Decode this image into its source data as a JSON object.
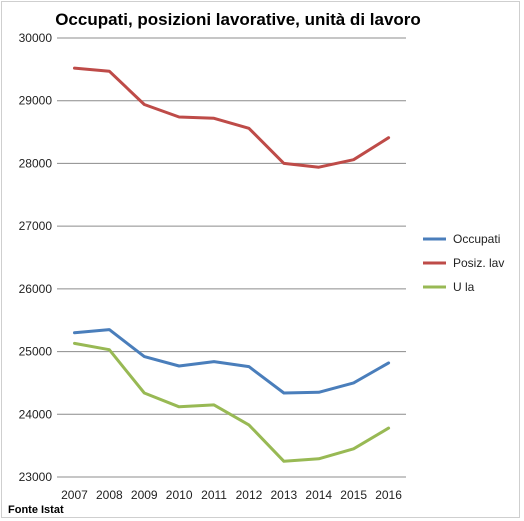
{
  "chart_data": {
    "type": "line",
    "title": "Occupati, posizioni lavorative, unità di lavoro",
    "xlabel": "",
    "ylabel": "",
    "categories": [
      "2007",
      "2008",
      "2009",
      "2010",
      "2011",
      "2012",
      "2013",
      "2014",
      "2015",
      "2016"
    ],
    "ylim": [
      23000,
      30000
    ],
    "yticks": [
      23000,
      24000,
      25000,
      26000,
      27000,
      28000,
      29000,
      30000
    ],
    "grid": true,
    "legend_position": "right",
    "series": [
      {
        "name": "Occupati",
        "color": "#4a7ebb",
        "values": [
          25300,
          25350,
          24920,
          24770,
          24840,
          24760,
          24340,
          24350,
          24500,
          24820
        ]
      },
      {
        "name": "Posiz. lav",
        "color": "#be4b48",
        "values": [
          29520,
          29470,
          28940,
          28740,
          28720,
          28560,
          28000,
          27940,
          28060,
          28410
        ]
      },
      {
        "name": "U la",
        "color": "#98b954",
        "values": [
          25130,
          25030,
          24340,
          24120,
          24150,
          23830,
          23250,
          23290,
          23450,
          23780
        ]
      }
    ],
    "source": "Fonte Istat"
  }
}
